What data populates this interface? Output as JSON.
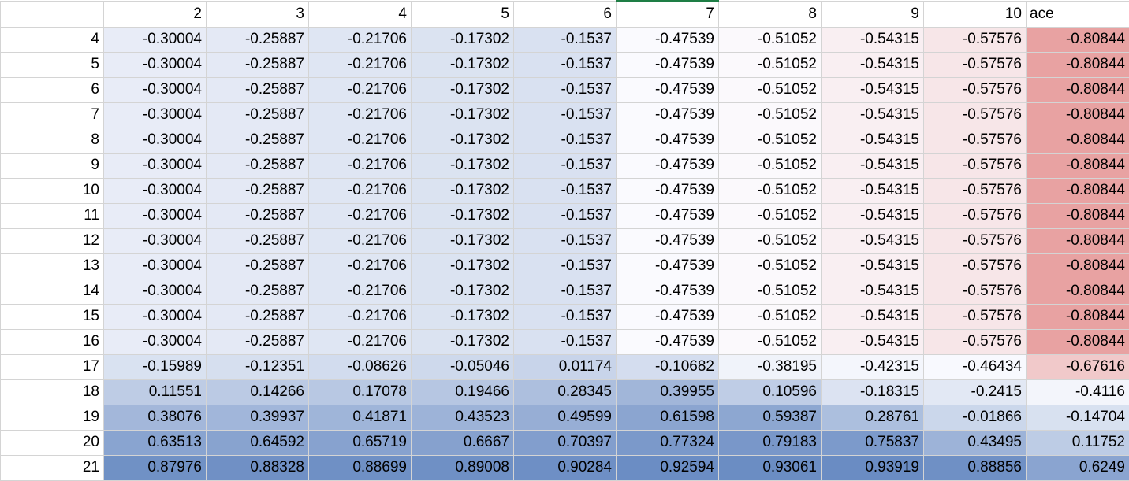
{
  "header": {
    "corner": "",
    "columns": [
      "2",
      "3",
      "4",
      "5",
      "6",
      "7",
      "8",
      "9",
      "10",
      "ace"
    ]
  },
  "rows": [
    {
      "label": "4",
      "values": [
        "-0.30004",
        "-0.25887",
        "-0.21706",
        "-0.17302",
        "-0.1537",
        "-0.47539",
        "-0.51052",
        "-0.54315",
        "-0.57576",
        "-0.80844"
      ]
    },
    {
      "label": "5",
      "values": [
        "-0.30004",
        "-0.25887",
        "-0.21706",
        "-0.17302",
        "-0.1537",
        "-0.47539",
        "-0.51052",
        "-0.54315",
        "-0.57576",
        "-0.80844"
      ]
    },
    {
      "label": "6",
      "values": [
        "-0.30004",
        "-0.25887",
        "-0.21706",
        "-0.17302",
        "-0.1537",
        "-0.47539",
        "-0.51052",
        "-0.54315",
        "-0.57576",
        "-0.80844"
      ]
    },
    {
      "label": "7",
      "values": [
        "-0.30004",
        "-0.25887",
        "-0.21706",
        "-0.17302",
        "-0.1537",
        "-0.47539",
        "-0.51052",
        "-0.54315",
        "-0.57576",
        "-0.80844"
      ]
    },
    {
      "label": "8",
      "values": [
        "-0.30004",
        "-0.25887",
        "-0.21706",
        "-0.17302",
        "-0.1537",
        "-0.47539",
        "-0.51052",
        "-0.54315",
        "-0.57576",
        "-0.80844"
      ]
    },
    {
      "label": "9",
      "values": [
        "-0.30004",
        "-0.25887",
        "-0.21706",
        "-0.17302",
        "-0.1537",
        "-0.47539",
        "-0.51052",
        "-0.54315",
        "-0.57576",
        "-0.80844"
      ]
    },
    {
      "label": "10",
      "values": [
        "-0.30004",
        "-0.25887",
        "-0.21706",
        "-0.17302",
        "-0.1537",
        "-0.47539",
        "-0.51052",
        "-0.54315",
        "-0.57576",
        "-0.80844"
      ]
    },
    {
      "label": "11",
      "values": [
        "-0.30004",
        "-0.25887",
        "-0.21706",
        "-0.17302",
        "-0.1537",
        "-0.47539",
        "-0.51052",
        "-0.54315",
        "-0.57576",
        "-0.80844"
      ]
    },
    {
      "label": "12",
      "values": [
        "-0.30004",
        "-0.25887",
        "-0.21706",
        "-0.17302",
        "-0.1537",
        "-0.47539",
        "-0.51052",
        "-0.54315",
        "-0.57576",
        "-0.80844"
      ]
    },
    {
      "label": "13",
      "values": [
        "-0.30004",
        "-0.25887",
        "-0.21706",
        "-0.17302",
        "-0.1537",
        "-0.47539",
        "-0.51052",
        "-0.54315",
        "-0.57576",
        "-0.80844"
      ]
    },
    {
      "label": "14",
      "values": [
        "-0.30004",
        "-0.25887",
        "-0.21706",
        "-0.17302",
        "-0.1537",
        "-0.47539",
        "-0.51052",
        "-0.54315",
        "-0.57576",
        "-0.80844"
      ]
    },
    {
      "label": "15",
      "values": [
        "-0.30004",
        "-0.25887",
        "-0.21706",
        "-0.17302",
        "-0.1537",
        "-0.47539",
        "-0.51052",
        "-0.54315",
        "-0.57576",
        "-0.80844"
      ]
    },
    {
      "label": "16",
      "values": [
        "-0.30004",
        "-0.25887",
        "-0.21706",
        "-0.17302",
        "-0.1537",
        "-0.47539",
        "-0.51052",
        "-0.54315",
        "-0.57576",
        "-0.80844"
      ]
    },
    {
      "label": "17",
      "values": [
        "-0.15989",
        "-0.12351",
        "-0.08626",
        "-0.05046",
        "0.01174",
        "-0.10682",
        "-0.38195",
        "-0.42315",
        "-0.46434",
        "-0.67616"
      ]
    },
    {
      "label": "18",
      "values": [
        "0.11551",
        "0.14266",
        "0.17078",
        "0.19466",
        "0.28345",
        "0.39955",
        "0.10596",
        "-0.18315",
        "-0.2415",
        "-0.4116"
      ]
    },
    {
      "label": "19",
      "values": [
        "0.38076",
        "0.39937",
        "0.41871",
        "0.43523",
        "0.49599",
        "0.61598",
        "0.59387",
        "0.28761",
        "-0.01866",
        "-0.14704"
      ]
    },
    {
      "label": "20",
      "values": [
        "0.63513",
        "0.64592",
        "0.65719",
        "0.6667",
        "0.70397",
        "0.77324",
        "0.79183",
        "0.75837",
        "0.43495",
        "0.11752"
      ]
    },
    {
      "label": "21",
      "values": [
        "0.87976",
        "0.88328",
        "0.88699",
        "0.89008",
        "0.90284",
        "0.92594",
        "0.93061",
        "0.93919",
        "0.88856",
        "0.6249"
      ]
    }
  ],
  "color_scale": {
    "min_color": "#e8a2a2",
    "mid_color": "#fcfcff",
    "max_color": "#6a8cc3",
    "min_value": -0.80844,
    "mid_value": -0.5,
    "max_value": 0.93919
  },
  "selected_column_color": "#1e7e45"
}
